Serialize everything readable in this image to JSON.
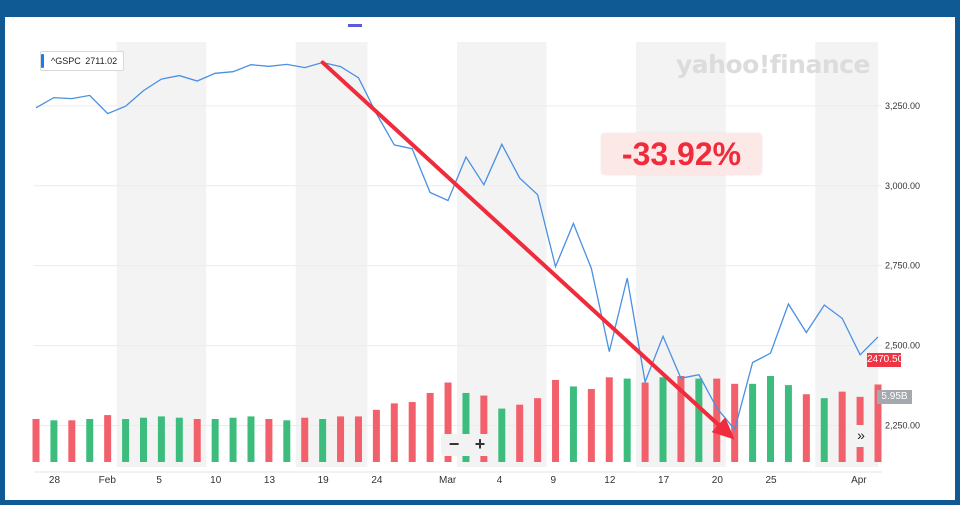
{
  "ticker": {
    "symbol": "^GSPC",
    "value": "2711.02"
  },
  "watermark": "yahoo!finance",
  "change_label": "-33.92%",
  "price_tag": "2470.50",
  "volume_tag": "5.95B",
  "controls": {
    "zoom_out": "−",
    "zoom_in": "+",
    "scroll_right": "»"
  },
  "colors": {
    "line": "#4a90e2",
    "arrow": "#ef2b3c",
    "vol_up": "#3dbd7d",
    "vol_down": "#f2606c",
    "band": "#f3f3f3",
    "frame": "#0f5a95"
  },
  "chart_data": {
    "type": "line",
    "x_tick_labels": [
      "28",
      "Feb",
      "5",
      "10",
      "13",
      "19",
      "24",
      "Mar",
      "4",
      "9",
      "12",
      "17",
      "20",
      "25",
      "Apr"
    ],
    "y_tick_labels": [
      "3,250.00",
      "3,000.00",
      "2,750.00",
      "2,500.00",
      "2,250.00"
    ],
    "ylim": [
      2120,
      3450
    ],
    "y_ticks": [
      3250,
      3000,
      2750,
      2500,
      2250
    ],
    "dates": [
      "2020-01-27",
      "2020-01-28",
      "2020-01-29",
      "2020-01-30",
      "2020-01-31",
      "2020-02-03",
      "2020-02-04",
      "2020-02-05",
      "2020-02-06",
      "2020-02-07",
      "2020-02-10",
      "2020-02-11",
      "2020-02-12",
      "2020-02-13",
      "2020-02-14",
      "2020-02-18",
      "2020-02-19",
      "2020-02-20",
      "2020-02-21",
      "2020-02-24",
      "2020-02-25",
      "2020-02-26",
      "2020-02-27",
      "2020-02-28",
      "2020-03-02",
      "2020-03-03",
      "2020-03-04",
      "2020-03-05",
      "2020-03-06",
      "2020-03-09",
      "2020-03-10",
      "2020-03-11",
      "2020-03-12",
      "2020-03-13",
      "2020-03-16",
      "2020-03-17",
      "2020-03-18",
      "2020-03-19",
      "2020-03-20",
      "2020-03-23",
      "2020-03-24",
      "2020-03-25",
      "2020-03-26",
      "2020-03-27",
      "2020-03-30",
      "2020-03-31",
      "2020-04-01",
      "2020-04-02"
    ],
    "close": [
      3244,
      3276,
      3273,
      3283,
      3226,
      3249,
      3298,
      3334,
      3345,
      3328,
      3352,
      3357,
      3379,
      3374,
      3380,
      3370,
      3386,
      3373,
      3338,
      3226,
      3128,
      3116,
      2979,
      2954,
      3090,
      3003,
      3130,
      3024,
      2972,
      2747,
      2882,
      2741,
      2481,
      2711,
      2386,
      2529,
      2398,
      2409,
      2305,
      2237,
      2447,
      2476,
      2630,
      2541,
      2627,
      2585,
      2471,
      2527
    ],
    "volume_direction": [
      "down",
      "up",
      "down",
      "up",
      "down",
      "up",
      "up",
      "up",
      "up",
      "down",
      "up",
      "up",
      "up",
      "down",
      "up",
      "down",
      "up",
      "down",
      "down",
      "down",
      "down",
      "down",
      "down",
      "down",
      "up",
      "down",
      "up",
      "down",
      "down",
      "down",
      "up",
      "down",
      "down",
      "up",
      "down",
      "up",
      "down",
      "up",
      "down",
      "down",
      "up",
      "up",
      "up",
      "down",
      "up",
      "down",
      "down",
      "down"
    ],
    "volume_billions": [
      3.3,
      3.2,
      3.2,
      3.3,
      3.6,
      3.3,
      3.4,
      3.5,
      3.4,
      3.3,
      3.3,
      3.4,
      3.5,
      3.3,
      3.2,
      3.4,
      3.3,
      3.5,
      3.5,
      4.0,
      4.5,
      4.6,
      5.3,
      6.1,
      5.3,
      5.1,
      4.1,
      4.4,
      4.9,
      6.3,
      5.8,
      5.6,
      6.5,
      6.4,
      6.1,
      6.5,
      6.6,
      6.4,
      6.4,
      6.0,
      6.0,
      6.6,
      5.9,
      5.2,
      4.9,
      5.4,
      5.0,
      5.95
    ]
  }
}
